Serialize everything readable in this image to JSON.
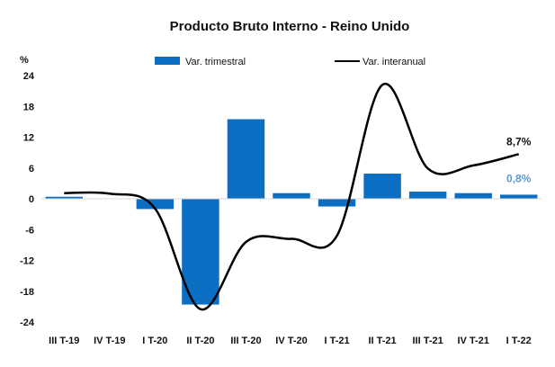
{
  "chart_data": {
    "type": "bar",
    "title": "Producto Bruto Interno - Reino Unido",
    "ylabel": "%",
    "categories": [
      "III T-19",
      "IV T-19",
      "I T-20",
      "II T-20",
      "III T-20",
      "IV T-20",
      "I T-21",
      "II T-21",
      "III T-21",
      "IV T-21",
      "I T-22"
    ],
    "yticks": [
      24,
      18,
      12,
      6,
      0,
      -6,
      -12,
      -18,
      -24
    ],
    "ylim": [
      -24,
      24
    ],
    "series": [
      {
        "name": "Var. trimestral",
        "kind": "bar",
        "color": "#0a6fc2",
        "values": [
          0.4,
          0.0,
          -2.0,
          -20.6,
          15.5,
          1.1,
          -1.5,
          4.9,
          1.4,
          1.1,
          0.8
        ]
      },
      {
        "name": "Var. interanual",
        "kind": "line",
        "color": "#000000",
        "values": [
          1.1,
          1.0,
          -1.9,
          -21.5,
          -8.4,
          -7.8,
          -7.2,
          22.2,
          5.9,
          6.5,
          8.7
        ]
      }
    ],
    "data_labels": [
      {
        "series": 1,
        "index": 10,
        "text": "8,7%",
        "color": "#111111"
      },
      {
        "series": 0,
        "index": 10,
        "text": "0,8%",
        "color": "#5b9bd5"
      }
    ],
    "legend": "top",
    "grid": false
  }
}
